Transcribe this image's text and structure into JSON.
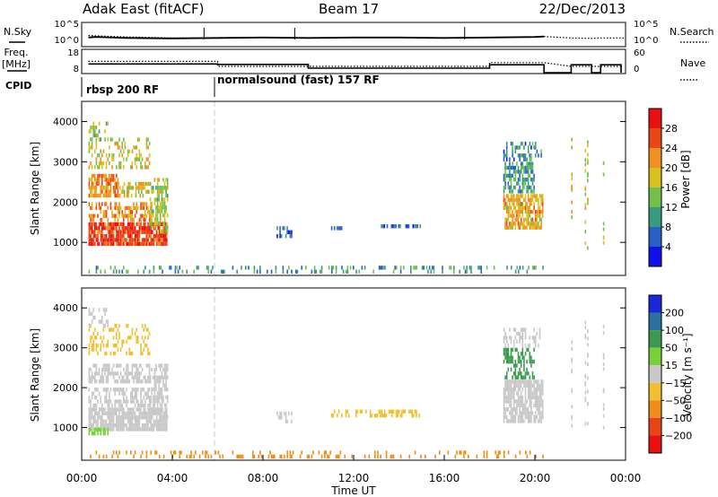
{
  "header": {
    "station": "Adak East (fitACF)",
    "beam": "Beam 17",
    "date": "22/Dec/2013"
  },
  "labels": {
    "nsky": "N.Sky",
    "nsearch": "N.Search",
    "freq_line1": "Freq.",
    "freq_line2": "[MHz]",
    "nave": "Nave",
    "cpid": "CPID",
    "cpid_mode_1": "rbsp 200 RF",
    "cpid_mode_2": "normalsound (fast) 157 RF"
  },
  "chart_data": [
    {
      "type": "line",
      "panel": "noise",
      "series": [
        {
          "name": "N.Sky",
          "style": "solid",
          "x": [
            0.3,
            0.6,
            2,
            4,
            6,
            8,
            10,
            12,
            14,
            16,
            18,
            20,
            20.4
          ],
          "y": [
            10,
            11,
            9,
            8,
            9,
            10,
            9,
            10,
            10,
            9,
            10,
            11,
            12
          ]
        },
        {
          "name": "N.Search",
          "style": "dotted",
          "x": [
            0.3,
            2,
            4,
            6,
            8,
            10,
            12,
            14,
            16,
            18,
            20,
            20.4,
            21.6,
            22.5,
            22.9,
            24
          ],
          "y": [
            14,
            11,
            9,
            9,
            10,
            9,
            10,
            10,
            9,
            10,
            11,
            12,
            9,
            8,
            9,
            9
          ]
        }
      ],
      "yticks_left": [
        "10^5",
        "10^0"
      ],
      "yticks_right": [
        "10^5",
        "10^0"
      ]
    },
    {
      "type": "line",
      "panel": "frequency",
      "series": [
        {
          "name": "Freq.",
          "style": "solid",
          "x": [
            0.3,
            6.0,
            6.0,
            10.0,
            10.0,
            18.0,
            18.0,
            20.4,
            20.4,
            21.6,
            21.6,
            22.5,
            22.5,
            22.9,
            22.9,
            23.8,
            23.8
          ],
          "y": [
            12.6,
            12.6,
            12.4,
            12.4,
            10.4,
            10.4,
            12.2,
            12.2,
            8,
            8,
            12.2,
            12.2,
            8,
            8,
            12.2,
            12.2,
            8
          ]
        },
        {
          "name": "Nave",
          "style": "dotted",
          "x": [
            0.3,
            6.0,
            6.0,
            18.0,
            18.0,
            20.4,
            21.6,
            22.5,
            22.9,
            23.8
          ],
          "y": [
            36,
            36,
            20,
            20,
            32,
            32,
            20,
            20,
            20,
            20
          ]
        }
      ],
      "yticks_left": [
        "18",
        "8"
      ],
      "yticks_right": [
        "60",
        "0"
      ]
    },
    {
      "type": "heatmap",
      "panel": "power",
      "xlabel": "",
      "ylabel": "Slant Range [km]",
      "xlim": [
        0,
        24
      ],
      "ylim": [
        180,
        4500
      ],
      "yticks": [
        1000,
        2000,
        3000,
        4000
      ],
      "colorbar": {
        "label": "Power [dB]",
        "ticks": [
          4,
          8,
          12,
          16,
          20,
          24,
          28
        ],
        "range": [
          0,
          32
        ],
        "colors": [
          "#1010ee",
          "#2860c8",
          "#3a9a80",
          "#6fc04c",
          "#d8c020",
          "#f09020",
          "#e84818",
          "#e81010"
        ]
      },
      "regions": [
        {
          "t0": 0.3,
          "t1": 3.8,
          "r0": 900,
          "r1": 1500,
          "value": 27,
          "density": 0.85
        },
        {
          "t0": 0.3,
          "t1": 3.1,
          "r0": 1500,
          "r1": 2000,
          "value": 22,
          "density": 0.5
        },
        {
          "t0": 0.3,
          "t1": 1.6,
          "r0": 2100,
          "r1": 2700,
          "value": 22,
          "density": 0.7
        },
        {
          "t0": 1.6,
          "t1": 3.0,
          "r0": 2100,
          "r1": 2500,
          "value": 18,
          "density": 0.5
        },
        {
          "t0": 3.0,
          "t1": 3.8,
          "r0": 1200,
          "r1": 2600,
          "value": 16,
          "density": 0.6
        },
        {
          "t0": 0.3,
          "t1": 3.0,
          "r0": 2800,
          "r1": 3600,
          "value": 18,
          "density": 0.35
        },
        {
          "t0": 0.3,
          "t1": 1.2,
          "r0": 3500,
          "r1": 4000,
          "value": 16,
          "density": 0.4
        },
        {
          "t0": 8.6,
          "t1": 9.3,
          "r0": 1100,
          "r1": 1400,
          "value": 6,
          "density": 0.5
        },
        {
          "t0": 11.0,
          "t1": 11.5,
          "r0": 1300,
          "r1": 1400,
          "value": 6,
          "density": 0.7
        },
        {
          "t0": 13.2,
          "t1": 15.0,
          "r0": 1350,
          "r1": 1450,
          "value": 7,
          "density": 0.7
        },
        {
          "t0": 18.6,
          "t1": 20.4,
          "r0": 1300,
          "r1": 2200,
          "value": 20,
          "density": 0.75
        },
        {
          "t0": 18.6,
          "t1": 20.0,
          "r0": 2200,
          "r1": 3000,
          "value": 10,
          "density": 0.6
        },
        {
          "t0": 18.6,
          "t1": 20.3,
          "r0": 3000,
          "r1": 3500,
          "value": 8,
          "density": 0.4
        },
        {
          "t0": 0.3,
          "t1": 20.4,
          "r0": 180,
          "r1": 420,
          "value": 10,
          "density": 0.22
        }
      ]
    },
    {
      "type": "heatmap",
      "panel": "velocity",
      "xlabel": "Time UT",
      "ylabel": "Slant Range [km]",
      "xlim": [
        0,
        24
      ],
      "ylim": [
        180,
        4500
      ],
      "xticks": [
        "00:00",
        "04:00",
        "08:00",
        "12:00",
        "16:00",
        "20:00",
        "00:00"
      ],
      "yticks": [
        1000,
        2000,
        3000,
        4000
      ],
      "colorbar": {
        "label": "Velocity [m s⁻¹]",
        "ticks": [
          "200",
          "100",
          "50",
          "15",
          "−15",
          "−50",
          "−100",
          "−200"
        ],
        "colors": [
          "#1828d8",
          "#2a70a0",
          "#3c9a50",
          "#7ad038",
          "#c8c8c8",
          "#f0c030",
          "#f08c18",
          "#e84418",
          "#e81010"
        ]
      },
      "regions": [
        {
          "t0": 0.3,
          "t1": 3.8,
          "r0": 900,
          "r1": 1500,
          "value": 0,
          "density": 0.85
        },
        {
          "t0": 0.3,
          "t1": 1.2,
          "r0": 850,
          "r1": 1000,
          "value": 40,
          "density": 0.7
        },
        {
          "t0": 0.3,
          "t1": 3.1,
          "r0": 1500,
          "r1": 2000,
          "value": 0,
          "density": 0.5
        },
        {
          "t0": 0.3,
          "t1": 3.0,
          "r0": 2100,
          "r1": 2600,
          "value": 0,
          "density": 0.6
        },
        {
          "t0": 3.0,
          "t1": 3.8,
          "r0": 1200,
          "r1": 2600,
          "value": 0,
          "density": 0.6
        },
        {
          "t0": 0.3,
          "t1": 3.0,
          "r0": 2800,
          "r1": 3600,
          "value": -30,
          "density": 0.3
        },
        {
          "t0": 0.3,
          "t1": 1.2,
          "r0": 3500,
          "r1": 4000,
          "value": 0,
          "density": 0.4
        },
        {
          "t0": 8.6,
          "t1": 9.3,
          "r0": 1100,
          "r1": 1400,
          "value": 0,
          "density": 0.4
        },
        {
          "t0": 11.0,
          "t1": 15.0,
          "r0": 1300,
          "r1": 1450,
          "value": -30,
          "density": 0.5
        },
        {
          "t0": 18.6,
          "t1": 20.4,
          "r0": 1100,
          "r1": 2200,
          "value": 0,
          "density": 0.8
        },
        {
          "t0": 18.6,
          "t1": 20.0,
          "r0": 2200,
          "r1": 3000,
          "value": 60,
          "density": 0.5
        },
        {
          "t0": 18.6,
          "t1": 20.3,
          "r0": 3000,
          "r1": 3500,
          "value": 0,
          "density": 0.4
        },
        {
          "t0": 0.3,
          "t1": 20.4,
          "r0": 180,
          "r1": 420,
          "value": -60,
          "density": 0.22
        }
      ]
    }
  ]
}
